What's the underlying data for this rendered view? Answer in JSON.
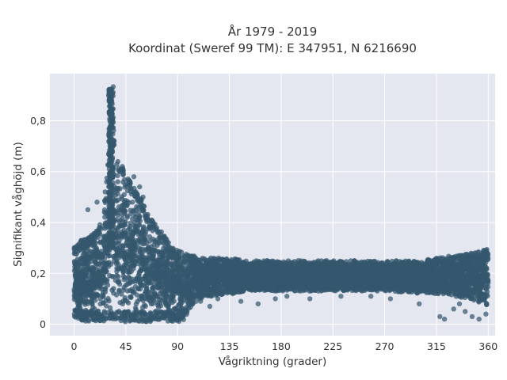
{
  "chart_data": {
    "type": "scatter",
    "title_line1": "År 1979 - 2019",
    "title_line2": "Koordinat (Sweref 99 TM): E 347951, N 6216690",
    "xlabel": "Vågriktning (grader)",
    "ylabel": "Signifikant våghöjd (m)",
    "xlim": [
      -21,
      366
    ],
    "ylim": [
      -0.045,
      0.985
    ],
    "xticks": [
      0,
      45,
      90,
      135,
      180,
      225,
      270,
      315,
      360
    ],
    "xtick_labels": [
      "0",
      "45",
      "90",
      "135",
      "180",
      "225",
      "270",
      "315",
      "360"
    ],
    "yticks": [
      0,
      0.2,
      0.4,
      0.6,
      0.8
    ],
    "ytick_labels": [
      "0",
      "0,2",
      "0,4",
      "0,6",
      "0,8"
    ],
    "grid": true,
    "marker_color": "#34576e",
    "background_color": "#e5e7f0",
    "envelope": {
      "x": [
        0,
        5,
        10,
        15,
        20,
        25,
        28,
        30,
        31,
        32,
        33,
        35,
        38,
        40,
        45,
        50,
        55,
        60,
        65,
        70,
        75,
        80,
        85,
        90,
        95,
        100,
        105,
        110,
        120,
        135,
        150,
        180,
        225,
        270,
        300,
        315,
        330,
        345,
        355,
        360
      ],
      "y_min": [
        0.03,
        0.02,
        0.01,
        0.01,
        0.01,
        0.01,
        0.01,
        0.01,
        0.01,
        0.01,
        0.01,
        0.01,
        0.01,
        0.01,
        0.01,
        0.01,
        0.01,
        0.01,
        0.01,
        0.01,
        0.01,
        0.01,
        0.01,
        0.01,
        0.01,
        0.06,
        0.08,
        0.1,
        0.11,
        0.12,
        0.13,
        0.13,
        0.13,
        0.13,
        0.12,
        0.12,
        0.11,
        0.1,
        0.08,
        0.06
      ],
      "y_max": [
        0.3,
        0.33,
        0.34,
        0.35,
        0.37,
        0.42,
        0.55,
        0.72,
        0.88,
        0.94,
        0.88,
        0.72,
        0.64,
        0.62,
        0.61,
        0.55,
        0.52,
        0.48,
        0.42,
        0.4,
        0.37,
        0.34,
        0.31,
        0.29,
        0.28,
        0.27,
        0.27,
        0.26,
        0.26,
        0.26,
        0.25,
        0.25,
        0.25,
        0.25,
        0.25,
        0.26,
        0.27,
        0.28,
        0.29,
        0.3
      ]
    },
    "outliers": {
      "x": [
        38,
        42,
        52,
        57,
        60,
        12,
        20,
        27,
        93,
        95,
        100,
        105,
        110,
        118,
        125,
        138,
        145,
        160,
        175,
        185,
        205,
        232,
        258,
        275,
        300,
        318,
        322,
        330,
        335,
        340,
        346,
        352,
        358
      ],
      "y": [
        0.56,
        0.62,
        0.58,
        0.54,
        0.5,
        0.45,
        0.48,
        0.52,
        0.17,
        0.19,
        0.16,
        0.18,
        0.09,
        0.07,
        0.1,
        0.12,
        0.09,
        0.08,
        0.1,
        0.11,
        0.1,
        0.11,
        0.11,
        0.1,
        0.08,
        0.03,
        0.02,
        0.06,
        0.08,
        0.05,
        0.03,
        0.02,
        0.04
      ]
    }
  }
}
